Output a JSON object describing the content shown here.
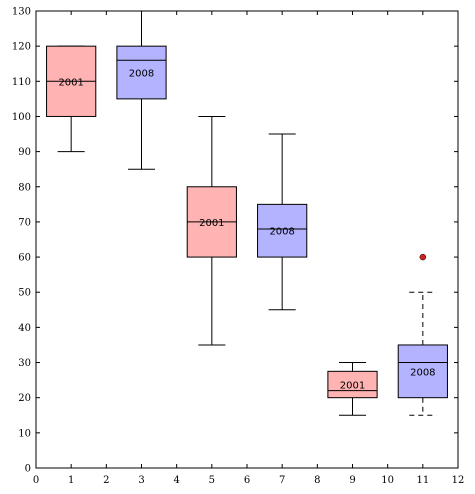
{
  "chart_data": {
    "type": "box",
    "title": "",
    "xlabel": "",
    "ylabel": "",
    "xlim": [
      0,
      12
    ],
    "ylim": [
      0,
      130
    ],
    "xticks": [
      "0",
      "1",
      "2",
      "3",
      "4",
      "5",
      "6",
      "7",
      "8",
      "9",
      "10",
      "11",
      "12"
    ],
    "yticks": [
      "0",
      "10",
      "20",
      "30",
      "40",
      "50",
      "60",
      "70",
      "80",
      "90",
      "100",
      "110",
      "120",
      "130"
    ],
    "colors": {
      "2001": "#ffb3b3",
      "2008": "#b3b3ff",
      "outlier": "#cc2222"
    },
    "boxes": [
      {
        "x": 1,
        "label": "2001",
        "box_width": 1.4,
        "whisker_low": 90,
        "q1": 100,
        "median": 110,
        "q3": 120,
        "whisker_high": 120,
        "whisker_style": "solid",
        "outliers": []
      },
      {
        "x": 3,
        "label": "2008",
        "box_width": 1.4,
        "whisker_low": 85,
        "q1": 105,
        "median": 116,
        "q3": 120,
        "whisker_high": 130,
        "whisker_style": "solid",
        "outliers": []
      },
      {
        "x": 5,
        "label": "2001",
        "box_width": 1.4,
        "whisker_low": 35,
        "q1": 60,
        "median": 70,
        "q3": 80,
        "whisker_high": 100,
        "whisker_style": "solid",
        "outliers": []
      },
      {
        "x": 7,
        "label": "2008",
        "box_width": 1.4,
        "whisker_low": 45,
        "q1": 60,
        "median": 68,
        "q3": 75,
        "whisker_high": 95,
        "whisker_style": "solid",
        "outliers": []
      },
      {
        "x": 9,
        "label": "2001",
        "box_width": 1.4,
        "whisker_low": 15,
        "q1": 20,
        "median": 22,
        "q3": 27.5,
        "whisker_high": 30,
        "whisker_style": "solid",
        "outliers": []
      },
      {
        "x": 11,
        "label": "2008",
        "box_width": 1.4,
        "whisker_low": 15,
        "q1": 20,
        "median": 30,
        "q3": 35,
        "whisker_high": 50,
        "whisker_style": "dashed",
        "outliers": [
          60
        ]
      }
    ],
    "grid": false,
    "legend": "none"
  }
}
